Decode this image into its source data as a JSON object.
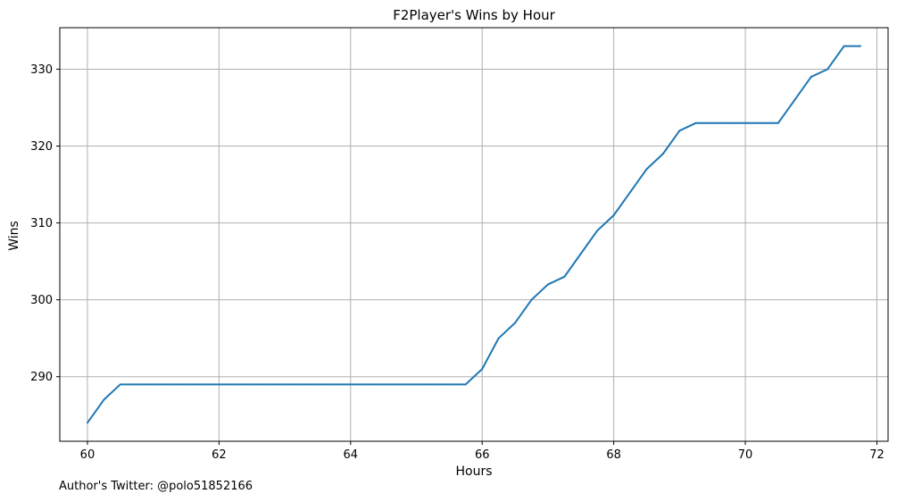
{
  "footer": {
    "credit": "Author's Twitter: @polo51852166"
  },
  "colors": {
    "line": "#1f77b4",
    "grid": "#b0b0b0",
    "axes": "#000000"
  },
  "chart_data": {
    "type": "line",
    "title": "F2Player's Wins by Hour",
    "xlabel": "Hours",
    "ylabel": "Wins",
    "xlim": [
      59.58,
      72.17
    ],
    "ylim": [
      281.6,
      335.4
    ],
    "xticks": [
      60,
      62,
      64,
      66,
      68,
      70,
      72
    ],
    "yticks": [
      290,
      300,
      310,
      320,
      330
    ],
    "grid": true,
    "series": [
      {
        "x": [
          60,
          60.25,
          60.5,
          60.75,
          61,
          61.25,
          61.5,
          61.75,
          62,
          62.25,
          62.5,
          62.75,
          63,
          63.25,
          63.5,
          63.75,
          64,
          64.25,
          64.5,
          64.75,
          65,
          65.25,
          65.5,
          65.75,
          66,
          66.25,
          66.5,
          66.75,
          67,
          67.25,
          67.5,
          67.75,
          68,
          68.25,
          68.5,
          68.75,
          69,
          69.25,
          69.5,
          69.75,
          70,
          70.25,
          70.5,
          70.75,
          71,
          71.25,
          71.5,
          71.75
        ],
        "y": [
          284,
          287,
          289,
          289,
          289,
          289,
          289,
          289,
          289,
          289,
          289,
          289,
          289,
          289,
          289,
          289,
          289,
          289,
          289,
          289,
          289,
          289,
          289,
          289,
          291,
          295,
          297,
          300,
          302,
          303,
          306,
          309,
          311,
          314,
          317,
          319,
          322,
          323,
          323,
          323,
          323,
          323,
          323,
          326,
          329,
          330,
          333,
          333
        ]
      }
    ]
  }
}
